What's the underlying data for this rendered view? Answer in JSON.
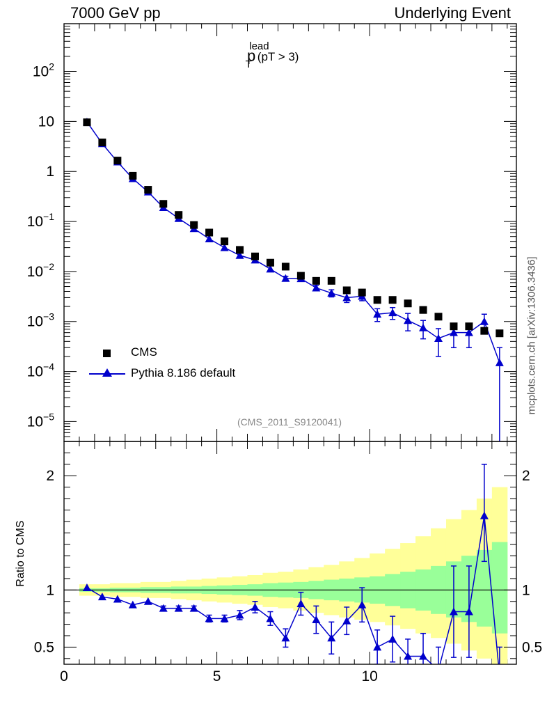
{
  "header": {
    "left": "7000 GeV pp",
    "right": "Underlying Event"
  },
  "plot_title": {
    "main": "p",
    "sup": "lead",
    "sub": "T",
    "cut": "(pT >  3)"
  },
  "watermark": "mcplots.cern.ch [arXiv:1306.3436]",
  "analysis_tag": "(CMS_2011_S9120041)",
  "legend": {
    "data_label": "CMS",
    "mc_label": "Pythia 8.186 default"
  },
  "ratio_ylabel": "Ratio to CMS",
  "colors": {
    "mc": "#0000cc",
    "data": "#000000",
    "band_inner": "#99ff99",
    "band_outer": "#ffff99"
  },
  "chart_data": [
    {
      "type": "scatter",
      "title": "",
      "xlabel": "",
      "ylabel": "",
      "yscale": "log",
      "xlim": [
        0,
        14.8
      ],
      "ylim": [
        4e-06,
        900
      ],
      "y_tick_labels": [
        "10^-5",
        "10^-4",
        "10^-3",
        "10^-2",
        "10^-1",
        "1",
        "10",
        "10^2"
      ],
      "legend_position": "bottom-left",
      "x": [
        0.75,
        1.25,
        1.75,
        2.25,
        2.75,
        3.25,
        3.75,
        4.25,
        4.75,
        5.25,
        5.75,
        6.25,
        6.75,
        7.25,
        7.75,
        8.25,
        8.75,
        9.25,
        9.75,
        10.25,
        10.75,
        11.25,
        11.75,
        12.25,
        12.75,
        13.25,
        13.75,
        14.25
      ],
      "series": [
        {
          "name": "CMS",
          "marker": "square",
          "values": [
            9.6,
            3.8,
            1.65,
            0.82,
            0.43,
            0.225,
            0.135,
            0.085,
            0.06,
            0.04,
            0.027,
            0.02,
            0.015,
            0.0125,
            0.0082,
            0.0065,
            0.0065,
            0.0042,
            0.0038,
            0.0027,
            0.0027,
            0.0023,
            0.0017,
            0.00125,
            0.0008,
            0.0008,
            0.00065,
            0.00058
          ]
        },
        {
          "name": "Pythia 8.186 default",
          "marker": "triangle",
          "values": [
            9.8,
            3.6,
            1.55,
            0.72,
            0.39,
            0.19,
            0.115,
            0.072,
            0.045,
            0.03,
            0.021,
            0.017,
            0.0112,
            0.0073,
            0.0072,
            0.0047,
            0.0037,
            0.003,
            0.0032,
            0.0014,
            0.0015,
            0.00105,
            0.00075,
            0.00046,
            0.0006,
            0.0006,
            0.001,
            0.00015
          ],
          "err_low": [
            0,
            0,
            0,
            0,
            0,
            0,
            0,
            0,
            0,
            0,
            0,
            0,
            0,
            0.0007,
            0.0007,
            0.0006,
            0.0006,
            0.0006,
            0.0006,
            0.0004,
            0.0004,
            0.0004,
            0.0003,
            0.00026,
            0.0003,
            0.0003,
            0.0004,
            0.00015
          ],
          "err_high": [
            0,
            0,
            0,
            0,
            0,
            0,
            0,
            0,
            0,
            0,
            0,
            0,
            0,
            0.0007,
            0.0007,
            0.0006,
            0.0006,
            0.0006,
            0.0006,
            0.0004,
            0.0004,
            0.0004,
            0.0003,
            0.00026,
            0.0003,
            0.0003,
            0.0004,
            0.00015
          ]
        }
      ]
    },
    {
      "type": "line",
      "title": "",
      "xlabel": "",
      "ylabel": "Ratio to CMS",
      "xlim": [
        0,
        14.8
      ],
      "ylim": [
        0.35,
        2.3
      ],
      "x_ticks": [
        0,
        5,
        10
      ],
      "y_ticks": [
        0.5,
        1,
        2
      ],
      "reference_line": 1,
      "x": [
        0.75,
        1.25,
        1.75,
        2.25,
        2.75,
        3.25,
        3.75,
        4.25,
        4.75,
        5.25,
        5.75,
        6.25,
        6.75,
        7.25,
        7.75,
        8.25,
        8.75,
        9.25,
        9.75,
        10.25,
        10.75,
        11.25,
        11.75,
        12.25,
        12.75,
        13.25,
        13.75,
        14.25
      ],
      "band_edges": [
        0.5,
        1,
        1.5,
        2,
        2.5,
        3,
        3.5,
        4,
        4.5,
        5,
        5.5,
        6,
        6.5,
        7,
        7.5,
        8,
        8.5,
        9,
        9.5,
        10,
        10.5,
        11,
        11.5,
        12,
        12.5,
        13,
        13.5,
        14,
        14.5
      ],
      "bands": [
        {
          "name": "inner",
          "low": [
            0.985,
            0.985,
            0.98,
            0.98,
            0.975,
            0.975,
            0.97,
            0.97,
            0.965,
            0.96,
            0.955,
            0.95,
            0.94,
            0.935,
            0.93,
            0.92,
            0.91,
            0.9,
            0.89,
            0.88,
            0.86,
            0.84,
            0.82,
            0.79,
            0.76,
            0.72,
            0.68,
            0.62
          ],
          "high": [
            1.015,
            1.015,
            1.02,
            1.02,
            1.025,
            1.025,
            1.03,
            1.03,
            1.035,
            1.04,
            1.045,
            1.05,
            1.06,
            1.065,
            1.07,
            1.08,
            1.09,
            1.1,
            1.11,
            1.12,
            1.14,
            1.16,
            1.18,
            1.21,
            1.25,
            1.3,
            1.35,
            1.42
          ]
        },
        {
          "name": "outer",
          "low": [
            0.95,
            0.95,
            0.94,
            0.94,
            0.93,
            0.93,
            0.92,
            0.91,
            0.9,
            0.89,
            0.88,
            0.87,
            0.85,
            0.84,
            0.82,
            0.8,
            0.78,
            0.76,
            0.74,
            0.72,
            0.69,
            0.66,
            0.62,
            0.58,
            0.53,
            0.47,
            0.4,
            0.35
          ],
          "high": [
            1.05,
            1.05,
            1.06,
            1.06,
            1.07,
            1.07,
            1.08,
            1.09,
            1.1,
            1.11,
            1.12,
            1.13,
            1.15,
            1.16,
            1.18,
            1.2,
            1.22,
            1.25,
            1.28,
            1.32,
            1.36,
            1.41,
            1.47,
            1.54,
            1.62,
            1.7,
            1.8,
            1.9
          ]
        }
      ],
      "series": [
        {
          "name": "Pythia 8.186 default",
          "values": [
            1.02,
            0.94,
            0.92,
            0.87,
            0.9,
            0.84,
            0.84,
            0.84,
            0.75,
            0.75,
            0.78,
            0.85,
            0.75,
            0.58,
            0.88,
            0.74,
            0.58,
            0.73,
            0.87,
            0.5,
            0.57,
            0.42,
            0.42,
            0.3,
            0.81,
            0.81,
            1.65,
            0.25
          ],
          "err_low": [
            0,
            0,
            0,
            0,
            0,
            0.02,
            0.02,
            0.02,
            0.03,
            0.03,
            0.04,
            0.05,
            0.06,
            0.08,
            0.1,
            0.12,
            0.14,
            0.12,
            0.15,
            0.15,
            0.2,
            0.15,
            0.2,
            0.2,
            0.4,
            0.4,
            0.4,
            0.25
          ],
          "err_high": [
            0,
            0,
            0,
            0,
            0,
            0.02,
            0.02,
            0.02,
            0.03,
            0.03,
            0.04,
            0.05,
            0.06,
            0.08,
            0.1,
            0.12,
            0.14,
            0.12,
            0.15,
            0.15,
            0.2,
            0.15,
            0.2,
            0.2,
            0.4,
            0.4,
            0.45,
            0.25
          ]
        }
      ]
    }
  ]
}
